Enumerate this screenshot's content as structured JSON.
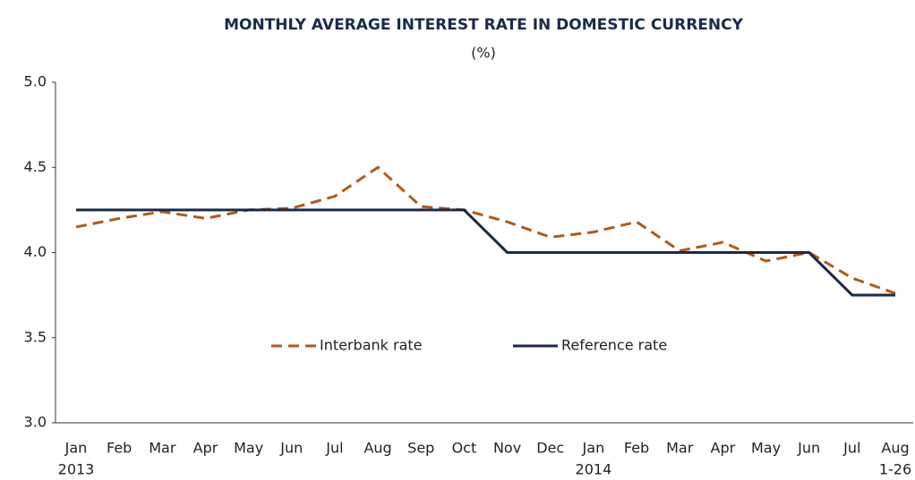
{
  "chart_data": {
    "type": "line",
    "title": "MONTHLY AVERAGE INTEREST RATE IN DOMESTIC CURRENCY",
    "subtitle": "(%)",
    "categories": [
      "Jan",
      "Feb",
      "Mar",
      "Apr",
      "May",
      "Jun",
      "Jul",
      "Aug",
      "Sep",
      "Oct",
      "Nov",
      "Dec",
      "Jan",
      "Feb",
      "Mar",
      "Apr",
      "May",
      "Jun",
      "Jul",
      "Aug"
    ],
    "category_sublabels": [
      "2013",
      null,
      null,
      null,
      null,
      null,
      null,
      null,
      null,
      null,
      null,
      null,
      "2014",
      null,
      null,
      null,
      null,
      null,
      null,
      "1-26"
    ],
    "series": [
      {
        "name": "Interbank rate",
        "color": "#b05a1a",
        "dashed": true,
        "values": [
          4.15,
          4.2,
          4.24,
          4.2,
          4.25,
          4.26,
          4.33,
          4.5,
          4.27,
          4.25,
          4.18,
          4.09,
          4.12,
          4.18,
          4.01,
          4.06,
          3.95,
          4.0,
          3.85,
          3.76
        ]
      },
      {
        "name": "Reference rate",
        "color": "#1b2a49",
        "dashed": false,
        "values": [
          4.25,
          4.25,
          4.25,
          4.25,
          4.25,
          4.25,
          4.25,
          4.25,
          4.25,
          4.25,
          4.0,
          4.0,
          4.0,
          4.0,
          4.0,
          4.0,
          4.0,
          4.0,
          3.75,
          3.75
        ]
      }
    ],
    "ylim": [
      3.0,
      5.0
    ],
    "yticks": [
      {
        "value": 3.0,
        "label": "3.0"
      },
      {
        "value": 3.5,
        "label": "3.5"
      },
      {
        "value": 4.0,
        "label": "4.0"
      },
      {
        "value": 4.5,
        "label": "4.5"
      },
      {
        "value": 5.0,
        "label": "5.0"
      }
    ],
    "grid": false,
    "legend": "center"
  }
}
